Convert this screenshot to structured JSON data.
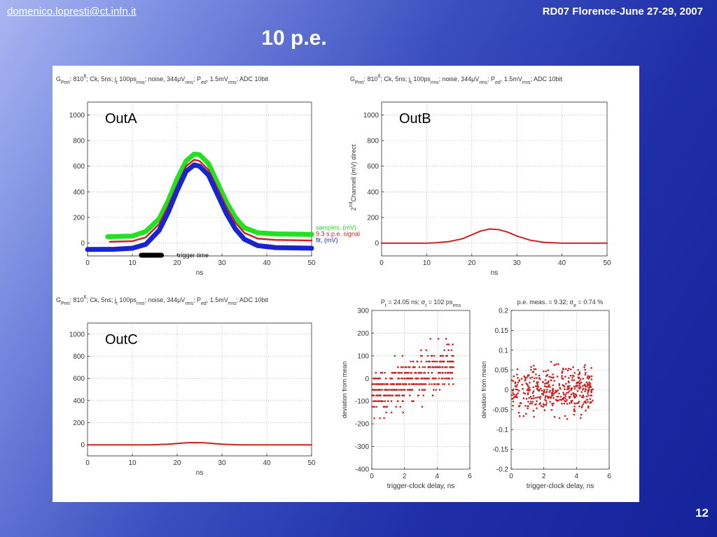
{
  "header": {
    "email": "domenico.lopresti@ct.infn.it",
    "conference": "RD07 Florence-June 27-29, 2007",
    "title": "10 p.e.",
    "page_number": "12"
  },
  "plot_header_text": {
    "part1": "G",
    "part1_sub": "Pmt",
    "part2": ": 810",
    "part2_sup": "6",
    "part3": "; Ck, 5ns; j",
    "part3_sub": "t",
    "part4": " 100ps",
    "part4_sub": "rms",
    "part5": "; noise, 344μV",
    "part5_sub": "rms",
    "part6": "; P",
    "part6_sub": "ed",
    "part7": ", 1.5mV",
    "part7_sub": "rms",
    "part8": "; ADC 10bit"
  },
  "colors": {
    "green": "#22e022",
    "red": "#cc2222",
    "blue": "#1a24cc"
  },
  "chart_data": [
    {
      "id": "outA",
      "type": "line",
      "annotation": "OutA",
      "xlabel": "ns",
      "ylabel": "",
      "xlim": [
        0,
        50
      ],
      "ylim": [
        -100,
        1100
      ],
      "xticks": [
        0,
        10,
        20,
        30,
        40,
        50
      ],
      "yticks": [
        0,
        200,
        400,
        600,
        800,
        1000
      ],
      "grid": true,
      "legend_position": "right",
      "trigger_label": "trigger time",
      "trigger_bar_ns": [
        12,
        16.5
      ],
      "series": [
        {
          "name": "samples, (mV)",
          "color": "#22e022",
          "x": [
            4.5,
            10,
            13,
            16,
            18,
            20,
            22,
            23.8,
            25,
            27,
            29,
            31,
            33,
            35,
            38,
            42,
            50
          ],
          "y": [
            50,
            55,
            90,
            190,
            330,
            500,
            640,
            695,
            690,
            620,
            470,
            320,
            200,
            120,
            80,
            72,
            68
          ]
        },
        {
          "name": "9.3 s.p.e. signal",
          "color": "#cc2222",
          "x": [
            5,
            10,
            13,
            16,
            18,
            20,
            22,
            23.8,
            25,
            27,
            29,
            31,
            33,
            35,
            38,
            42,
            50
          ],
          "y": [
            10,
            15,
            45,
            150,
            290,
            450,
            600,
            650,
            640,
            570,
            430,
            280,
            160,
            80,
            35,
            25,
            20
          ]
        },
        {
          "name": "fit, (mV)",
          "color": "#1a24cc",
          "x": [
            0,
            6,
            10,
            13,
            16,
            18,
            20,
            22,
            23.8,
            25,
            27,
            29,
            31,
            33,
            35,
            38,
            42,
            50
          ],
          "y": [
            -50,
            -48,
            -40,
            -10,
            100,
            240,
            410,
            560,
            610,
            600,
            530,
            380,
            230,
            110,
            30,
            -20,
            -35,
            -40
          ]
        }
      ]
    },
    {
      "id": "outB",
      "type": "line",
      "annotation": "OutB",
      "xlabel": "ns",
      "ylabel_pre": "2",
      "ylabel_sup": "nd",
      "ylabel_post": "Channell (mV) direct",
      "xlim": [
        0,
        50
      ],
      "ylim": [
        -100,
        1100
      ],
      "xticks": [
        0,
        10,
        20,
        30,
        40,
        50
      ],
      "yticks": [
        0,
        200,
        400,
        600,
        800,
        1000
      ],
      "grid": true,
      "series": [
        {
          "color": "#cc2222",
          "x": [
            0,
            10,
            12,
            15,
            18,
            20,
            22,
            24,
            26,
            28,
            30,
            33,
            36,
            40,
            50
          ],
          "y": [
            0,
            0,
            2,
            12,
            35,
            65,
            95,
            110,
            105,
            85,
            55,
            22,
            6,
            0,
            0
          ]
        }
      ]
    },
    {
      "id": "outC",
      "type": "line",
      "annotation": "OutC",
      "xlabel": "ns",
      "ylabel": "",
      "xlim": [
        0,
        50
      ],
      "ylim": [
        -100,
        1100
      ],
      "xticks": [
        0,
        10,
        20,
        30,
        40,
        50
      ],
      "yticks": [
        0,
        200,
        400,
        600,
        800,
        1000
      ],
      "grid": true,
      "series": [
        {
          "color": "#cc2222",
          "x": [
            0,
            14,
            18,
            20,
            22,
            24,
            26,
            28,
            30,
            34,
            50
          ],
          "y": [
            0,
            0,
            6,
            12,
            18,
            20,
            18,
            12,
            6,
            0,
            0
          ]
        }
      ]
    },
    {
      "id": "scatterP",
      "type": "scatter",
      "title_a": "P",
      "title_a_sub": "t",
      "title_b": " = 24.05 ns; σ",
      "title_b_sub": "t",
      "title_c": " = 102 ps",
      "title_c_sub": "rms",
      "xlabel": "trigger-clock delay, ns",
      "ylabel": "deviation from mean",
      "xlim": [
        0,
        6
      ],
      "ylim": [
        -400,
        300
      ],
      "xticks": [
        0,
        2,
        4,
        6
      ],
      "yticks": [
        -400,
        -300,
        -200,
        -100,
        0,
        100,
        200,
        300
      ],
      "grid": true,
      "color": "#cc2222",
      "n_points": 420,
      "seed": 7,
      "quantum": 25,
      "trend_slope": 30,
      "x_max": 5,
      "spread": 105,
      "y_clip": [
        -300,
        300
      ]
    },
    {
      "id": "scatterE",
      "type": "scatter",
      "title_a": "p.e. meas. = 9.32; σ",
      "title_a_sub": "e",
      "title_b": " = 0.74 %",
      "xlabel": "trigger-clock delay, ns",
      "ylabel": "deviation from mean",
      "xlim": [
        0,
        6
      ],
      "ylim": [
        -0.2,
        0.2
      ],
      "xticks": [
        0,
        2,
        4,
        6
      ],
      "yticks": [
        -0.2,
        -0.15,
        -0.1,
        -0.05,
        0,
        0.05,
        0.1,
        0.15,
        0.2
      ],
      "grid": true,
      "color": "#cc2222",
      "n_points": 420,
      "seed": 13,
      "quantum": 0,
      "trend_slope": 0,
      "x_max": 5,
      "spread": 0.06,
      "y_clip": [
        -0.15,
        0.18
      ]
    }
  ]
}
